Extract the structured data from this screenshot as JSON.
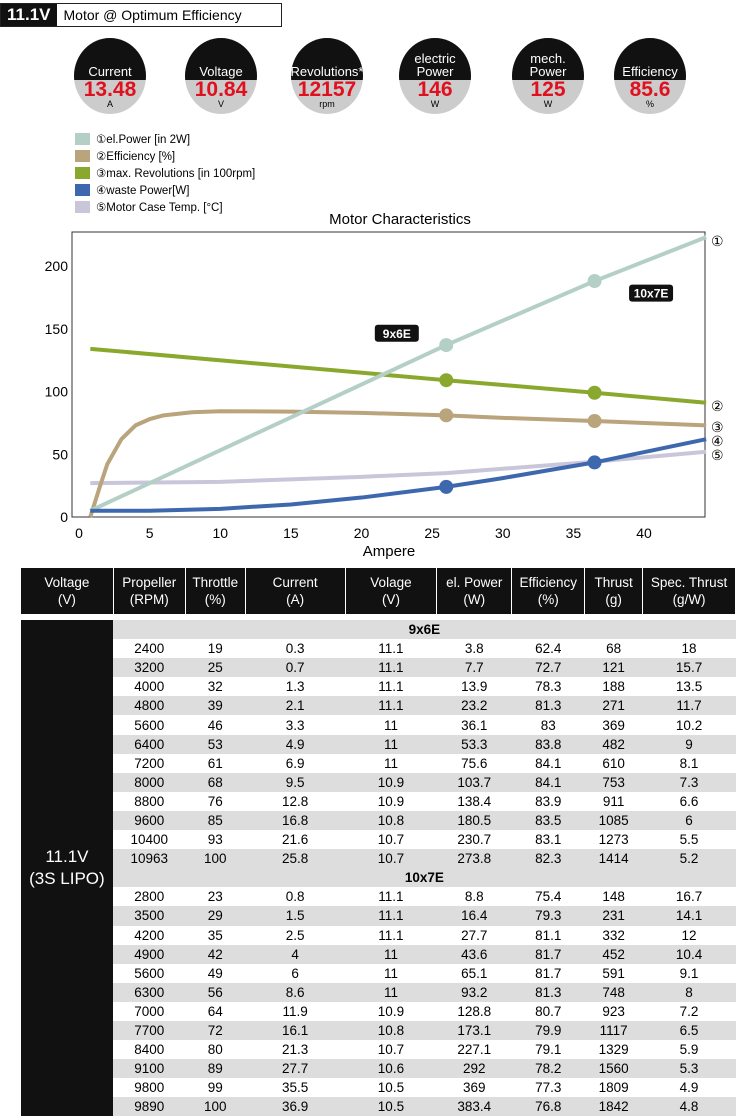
{
  "header": {
    "voltage": "11.1V",
    "title": "Motor @ Optimum Efficiency"
  },
  "gauges": [
    {
      "label": "Current",
      "value": "13.48",
      "unit": "A"
    },
    {
      "label": "Voltage",
      "value": "10.84",
      "unit": "V"
    },
    {
      "label": "Revolutions*",
      "value": "12157",
      "unit": "rpm"
    },
    {
      "label": "electric Power",
      "value": "146",
      "unit": "W"
    },
    {
      "label": "mech. Power",
      "value": "125",
      "unit": "W"
    },
    {
      "label": "Efficiency",
      "value": "85.6",
      "unit": "%"
    }
  ],
  "chart_data": {
    "type": "line",
    "title": "Motor Characteristics",
    "xlabel": "Ampere",
    "ylabel": "",
    "xlim": [
      0,
      44.4
    ],
    "ylim": [
      0,
      227
    ],
    "xticks": [
      "0",
      "5",
      "10",
      "15",
      "20",
      "25",
      "30",
      "35",
      "40"
    ],
    "yticks": [
      "0",
      "50",
      "100",
      "150",
      "200"
    ],
    "series": [
      {
        "name": "①el.Power [in 2W]",
        "end_label": "①",
        "color": "#b4cfc5",
        "points": [
          [
            0.8,
            5
          ],
          [
            26,
            137
          ],
          [
            36.5,
            188
          ],
          [
            44.4,
            223
          ]
        ],
        "markers": [
          26,
          36.5
        ]
      },
      {
        "name": "②Efficiency [%]",
        "end_label": "②",
        "color": "#b9a47c",
        "points": [
          [
            0.8,
            0
          ],
          [
            1.5,
            25
          ],
          [
            2,
            42
          ],
          [
            3,
            62
          ],
          [
            4,
            73
          ],
          [
            5,
            78
          ],
          [
            6,
            81
          ],
          [
            8,
            83.5
          ],
          [
            10,
            84.3
          ],
          [
            15,
            84
          ],
          [
            20,
            83
          ],
          [
            26,
            81
          ],
          [
            30,
            79
          ],
          [
            36.5,
            76.5
          ],
          [
            44.4,
            73
          ]
        ],
        "markers": [
          26,
          36.5
        ]
      },
      {
        "name": "③max. Revolutions [in 100rpm]",
        "end_label": "③",
        "color": "#8aa82e",
        "points": [
          [
            0.8,
            134
          ],
          [
            26,
            109
          ],
          [
            36.5,
            99
          ],
          [
            44.4,
            91
          ]
        ],
        "markers": [
          26,
          36.5
        ]
      },
      {
        "name": "④waste Power[W]",
        "end_label": "④",
        "color": "#3d68ae",
        "points": [
          [
            0.8,
            5
          ],
          [
            5,
            5
          ],
          [
            10,
            6.5
          ],
          [
            15,
            10
          ],
          [
            20,
            15.5
          ],
          [
            26,
            24
          ],
          [
            30,
            31
          ],
          [
            36.5,
            43.5
          ],
          [
            44.4,
            62
          ]
        ],
        "markers": [
          26,
          36.5
        ]
      },
      {
        "name": "⑤Motor Case Temp. [°C]",
        "end_label": "⑤",
        "color": "#c9c6da",
        "points": [
          [
            0.8,
            27
          ],
          [
            10,
            28
          ],
          [
            20,
            32
          ],
          [
            26,
            35
          ],
          [
            36.5,
            44
          ],
          [
            44.4,
            52
          ]
        ],
        "markers": []
      }
    ],
    "annotations": [
      {
        "text": "9x6E",
        "x": 22.5,
        "y": 146
      },
      {
        "text": "10x7E",
        "x": 40.5,
        "y": 178
      }
    ]
  },
  "table": {
    "headers": [
      "Voltage\n(V)",
      "Propeller\n(RPM)",
      "Throttle\n(%)",
      "Current\n(A)",
      "Volage\n(V)",
      "el. Power\n(W)",
      "Efficiency\n(%)",
      "Thrust\n(g)",
      "Spec. Thrust\n(g/W)"
    ],
    "voltage_label": "11.1V\n(3S LIPO)",
    "groups": [
      {
        "name": "9x6E",
        "rows": [
          [
            "2400",
            "19",
            "0.3",
            "11.1",
            "3.8",
            "62.4",
            "68",
            "18"
          ],
          [
            "3200",
            "25",
            "0.7",
            "11.1",
            "7.7",
            "72.7",
            "121",
            "15.7"
          ],
          [
            "4000",
            "32",
            "1.3",
            "11.1",
            "13.9",
            "78.3",
            "188",
            "13.5"
          ],
          [
            "4800",
            "39",
            "2.1",
            "11.1",
            "23.2",
            "81.3",
            "271",
            "11.7"
          ],
          [
            "5600",
            "46",
            "3.3",
            "11",
            "36.1",
            "83",
            "369",
            "10.2"
          ],
          [
            "6400",
            "53",
            "4.9",
            "11",
            "53.3",
            "83.8",
            "482",
            "9"
          ],
          [
            "7200",
            "61",
            "6.9",
            "11",
            "75.6",
            "84.1",
            "610",
            "8.1"
          ],
          [
            "8000",
            "68",
            "9.5",
            "10.9",
            "103.7",
            "84.1",
            "753",
            "7.3"
          ],
          [
            "8800",
            "76",
            "12.8",
            "10.9",
            "138.4",
            "83.9",
            "911",
            "6.6"
          ],
          [
            "9600",
            "85",
            "16.8",
            "10.8",
            "180.5",
            "83.5",
            "1085",
            "6"
          ],
          [
            "10400",
            "93",
            "21.6",
            "10.7",
            "230.7",
            "83.1",
            "1273",
            "5.5"
          ],
          [
            "10963",
            "100",
            "25.8",
            "10.7",
            "273.8",
            "82.3",
            "1414",
            "5.2"
          ]
        ]
      },
      {
        "name": "10x7E",
        "rows": [
          [
            "2800",
            "23",
            "0.8",
            "11.1",
            "8.8",
            "75.4",
            "148",
            "16.7"
          ],
          [
            "3500",
            "29",
            "1.5",
            "11.1",
            "16.4",
            "79.3",
            "231",
            "14.1"
          ],
          [
            "4200",
            "35",
            "2.5",
            "11.1",
            "27.7",
            "81.1",
            "332",
            "12"
          ],
          [
            "4900",
            "42",
            "4",
            "11",
            "43.6",
            "81.7",
            "452",
            "10.4"
          ],
          [
            "5600",
            "49",
            "6",
            "11",
            "65.1",
            "81.7",
            "591",
            "9.1"
          ],
          [
            "6300",
            "56",
            "8.6",
            "11",
            "93.2",
            "81.3",
            "748",
            "8"
          ],
          [
            "7000",
            "64",
            "11.9",
            "10.9",
            "128.8",
            "80.7",
            "923",
            "7.2"
          ],
          [
            "7700",
            "72",
            "16.1",
            "10.8",
            "173.1",
            "79.9",
            "1117",
            "6.5"
          ],
          [
            "8400",
            "80",
            "21.3",
            "10.7",
            "227.1",
            "79.1",
            "1329",
            "5.9"
          ],
          [
            "9100",
            "89",
            "27.7",
            "10.6",
            "292",
            "78.2",
            "1560",
            "5.3"
          ],
          [
            "9800",
            "99",
            "35.5",
            "10.5",
            "369",
            "77.3",
            "1809",
            "4.9"
          ],
          [
            "9890",
            "100",
            "36.9",
            "10.5",
            "383.4",
            "76.8",
            "1842",
            "4.8"
          ]
        ]
      }
    ]
  }
}
